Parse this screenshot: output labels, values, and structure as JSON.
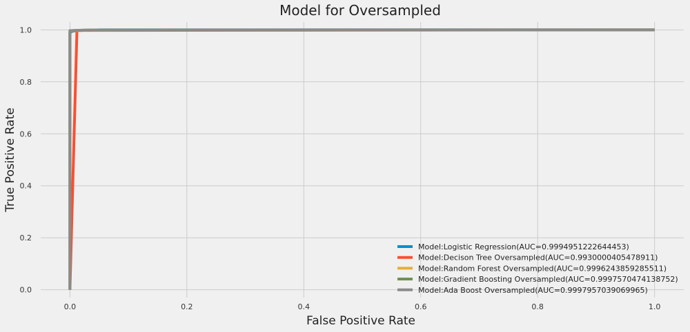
{
  "chart_data": {
    "type": "line",
    "title": "Model for Oversampled",
    "xlabel": "False Positive Rate",
    "ylabel": "True Positive Rate",
    "xlim": [
      -0.05,
      1.05
    ],
    "ylim": [
      -0.03,
      1.03
    ],
    "xticks": [
      0.0,
      0.2,
      0.4,
      0.6,
      0.8,
      1.0
    ],
    "xtick_labels": [
      "0.0",
      "0.2",
      "0.4",
      "0.6",
      "0.8",
      "1.0"
    ],
    "yticks": [
      0.0,
      0.2,
      0.4,
      0.6,
      0.8,
      1.0
    ],
    "ytick_labels": [
      "0.0",
      "0.2",
      "0.4",
      "0.6",
      "0.8",
      "1.0"
    ],
    "grid": true,
    "legend_position": "bottom-right",
    "series": [
      {
        "name": "Model:Logistic Regression(AUC=0.9994951222644453)",
        "color": "#008fd5",
        "x": [
          0,
          0,
          0.005,
          0.02,
          0.05,
          1
        ],
        "y": [
          0,
          0.99,
          0.995,
          0.998,
          1,
          1
        ]
      },
      {
        "name": "Model:Decison Tree Oversampled(AUC=0.9930000405478911)",
        "color": "#fc4f30",
        "x": [
          0,
          0.012,
          1
        ],
        "y": [
          0,
          0.998,
          1
        ]
      },
      {
        "name": "Model:Random Forest Oversampled(AUC=0.9996243859285511)",
        "color": "#e5ae38",
        "x": [
          0,
          0,
          0.01,
          0.03,
          1
        ],
        "y": [
          0,
          0.995,
          0.997,
          0.999,
          1
        ]
      },
      {
        "name": "Model:Gradient Boosting Oversampled(AUC=0.9997570474138752)",
        "color": "#6d904f",
        "x": [
          0,
          0,
          0.01,
          0.04,
          1
        ],
        "y": [
          0,
          0.996,
          0.998,
          0.9995,
          1
        ]
      },
      {
        "name": "Model:Ada Boost Oversampled(AUC=0.9997957039069965)",
        "color": "#8b8b8b",
        "x": [
          0,
          0,
          0.01,
          0.06,
          1
        ],
        "y": [
          0,
          0.997,
          0.998,
          1,
          1
        ]
      }
    ]
  }
}
